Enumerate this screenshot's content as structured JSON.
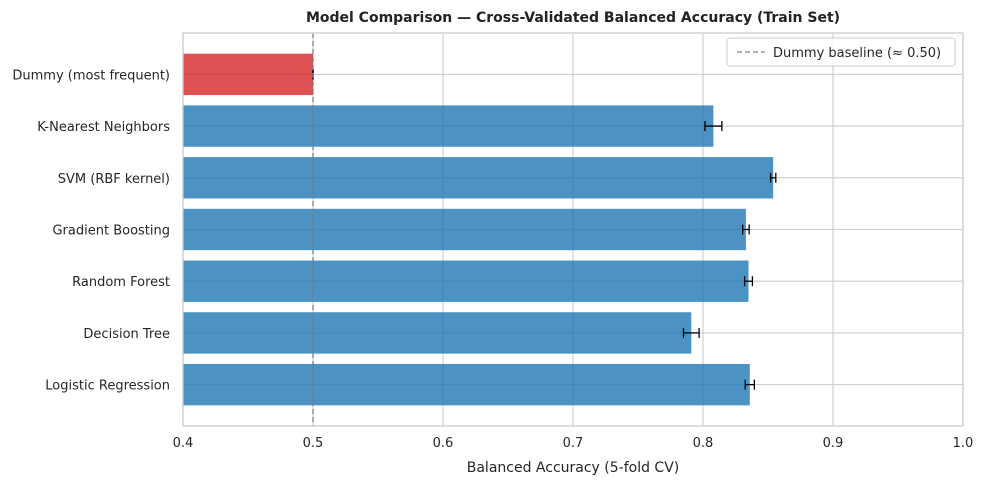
{
  "chart_data": {
    "type": "bar",
    "orientation": "horizontal",
    "title": "Model Comparison — Cross-Validated Balanced Accuracy (Train Set)",
    "xlabel": "Balanced Accuracy (5-fold CV)",
    "ylabel": "",
    "xlim": [
      0.4,
      1.0
    ],
    "xticks": [
      "0.4",
      "0.5",
      "0.6",
      "0.7",
      "0.8",
      "0.9",
      "1.0"
    ],
    "grid": true,
    "categories": [
      "Dummy (most frequent)",
      "K-Nearest Neighbors",
      "SVM (RBF kernel)",
      "Gradient Boosting",
      "Random Forest",
      "Decision Tree",
      "Logistic Regression"
    ],
    "values": [
      0.5,
      0.808,
      0.854,
      0.833,
      0.835,
      0.791,
      0.836
    ],
    "errors": [
      0.0,
      0.0065,
      0.002,
      0.0025,
      0.003,
      0.006,
      0.0035
    ],
    "bar_colors": [
      "#d62728",
      "#1f77b4",
      "#1f77b4",
      "#1f77b4",
      "#1f77b4",
      "#1f77b4",
      "#1f77b4"
    ],
    "reference_line": {
      "value": 0.5,
      "label": "Dummy baseline (≈ 0.50)",
      "color": "#808080",
      "style": "dashed"
    },
    "legend": {
      "placement": "top-right",
      "entries": [
        "Dummy baseline (≈ 0.50)"
      ]
    }
  }
}
